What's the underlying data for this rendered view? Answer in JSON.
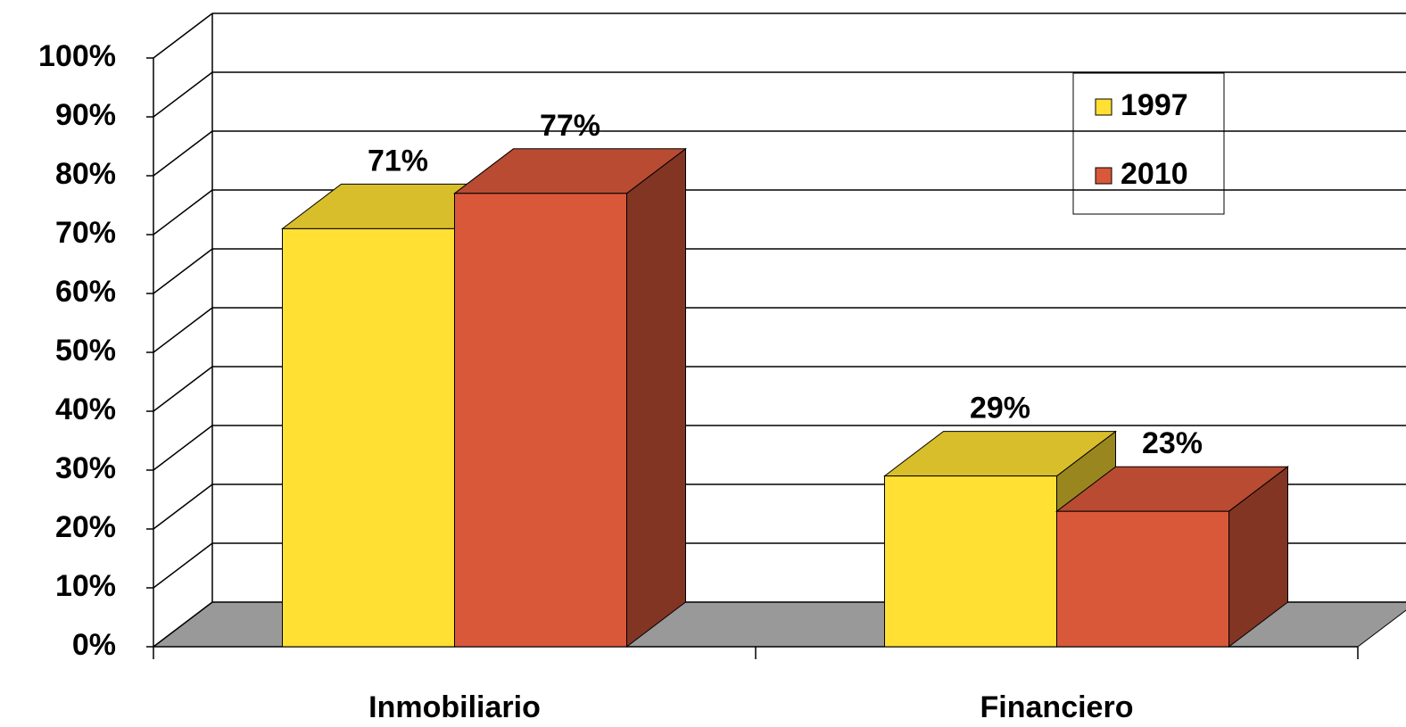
{
  "chart_data": {
    "type": "bar3d",
    "categories": [
      "Inmobiliario",
      "Financiero"
    ],
    "series": [
      {
        "name": "1997",
        "color": "#ffe033",
        "values": [
          71,
          29
        ],
        "value_labels": [
          "71%",
          "29%"
        ]
      },
      {
        "name": "2010",
        "color": "#d9583a",
        "values": [
          77,
          23
        ],
        "value_labels": [
          "77%",
          "23%"
        ]
      }
    ],
    "ylim": [
      0,
      100
    ],
    "yticks": [
      {
        "value": 0,
        "label": "0%"
      },
      {
        "value": 10,
        "label": "10%"
      },
      {
        "value": 20,
        "label": "20%"
      },
      {
        "value": 30,
        "label": "30%"
      },
      {
        "value": 40,
        "label": "40%"
      },
      {
        "value": 50,
        "label": "50%"
      },
      {
        "value": 60,
        "label": "60%"
      },
      {
        "value": 70,
        "label": "70%"
      },
      {
        "value": 80,
        "label": "80%"
      },
      {
        "value": 90,
        "label": "90%"
      },
      {
        "value": 100,
        "label": "100%"
      }
    ],
    "grid": true
  }
}
